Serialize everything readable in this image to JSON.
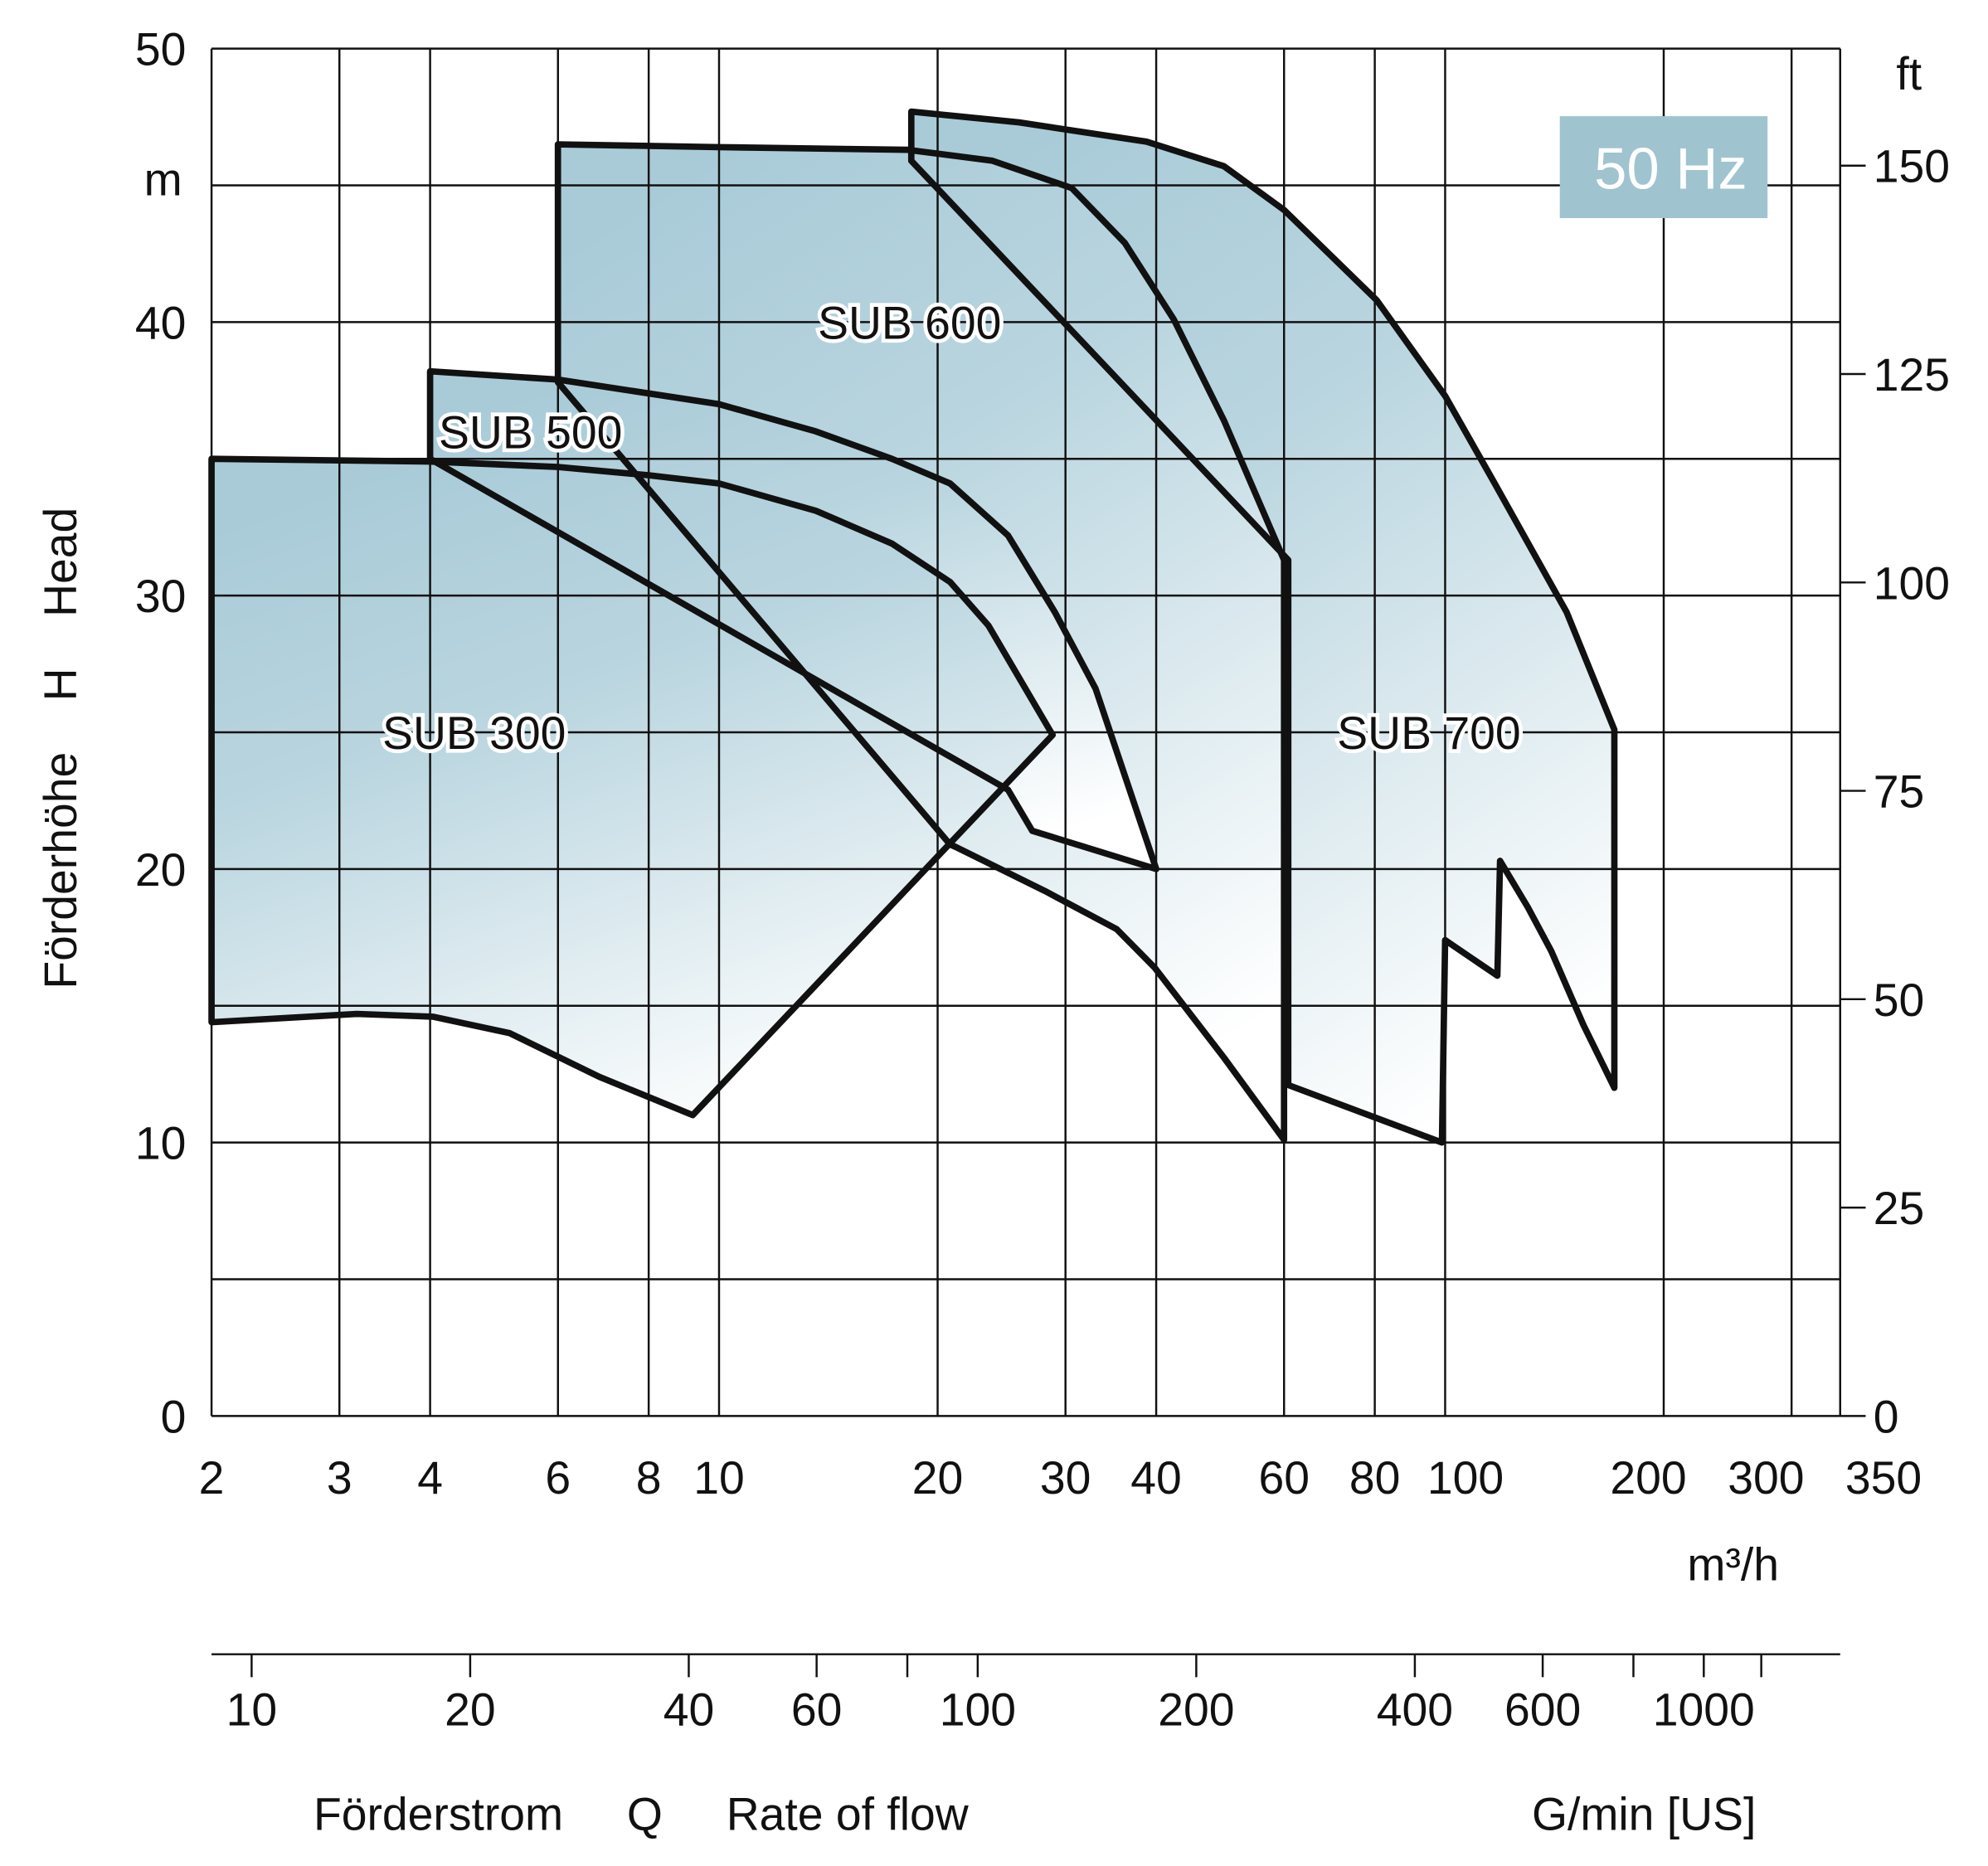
{
  "chart_data": {
    "type": "area",
    "badge": "50 Hz",
    "colors": {
      "fill_dark": "#a9cbd8",
      "fill_light": "#ffffff",
      "badge_bg": "#9fc4cf",
      "badge_text": "#ffffff"
    },
    "x_scale": "log",
    "xlim": [
      2,
      350
    ],
    "ylim": [
      0,
      50
    ],
    "grid": true,
    "x_gridlines": [
      2,
      3,
      4,
      6,
      8,
      10,
      20,
      30,
      40,
      60,
      80,
      100,
      200,
      300,
      350
    ],
    "y_gridlines": [
      0,
      5,
      10,
      15,
      20,
      25,
      30,
      35,
      40,
      45,
      50
    ],
    "xticks": [
      {
        "v": 2,
        "label": "2"
      },
      {
        "v": 3,
        "label": "3"
      },
      {
        "v": 4,
        "label": "4"
      },
      {
        "v": 6,
        "label": "6"
      },
      {
        "v": 8,
        "label": "8"
      },
      {
        "v": 10,
        "label": "10"
      },
      {
        "v": 20,
        "label": "20"
      },
      {
        "v": 30,
        "label": "30"
      },
      {
        "v": 40,
        "label": "40"
      },
      {
        "v": 60,
        "label": "60"
      },
      {
        "v": 80,
        "label": "80"
      },
      {
        "v": 100,
        "label": "100"
      },
      {
        "v": 200,
        "label": "200"
      },
      {
        "v": 300,
        "label": "300"
      },
      {
        "v": 350,
        "label": "350"
      }
    ],
    "xunit": "m³/h",
    "yticks_left": [
      {
        "v": 0,
        "label": "0"
      },
      {
        "v": 10,
        "label": "10"
      },
      {
        "v": 20,
        "label": "20"
      },
      {
        "v": 30,
        "label": "30"
      },
      {
        "v": 40,
        "label": "40"
      },
      {
        "v": 50,
        "label": "50"
      }
    ],
    "yunit_left": "m",
    "ylabel": "Förderhöhe    H    Head",
    "yticks_right_ft": [
      {
        "v": 0,
        "label": "0"
      },
      {
        "v": 25,
        "label": "25"
      },
      {
        "v": 50,
        "label": "50"
      },
      {
        "v": 75,
        "label": "75"
      },
      {
        "v": 100,
        "label": "100"
      },
      {
        "v": 125,
        "label": "125"
      },
      {
        "v": 150,
        "label": "150"
      }
    ],
    "yunit_right": "ft",
    "secondary_x_gpm": {
      "ticks": [
        {
          "v": 10,
          "label": "10"
        },
        {
          "v": 20,
          "label": "20"
        },
        {
          "v": 40,
          "label": "40"
        },
        {
          "v": 60,
          "label": "60"
        },
        {
          "v": 80,
          "label": ""
        },
        {
          "v": 100,
          "label": "100"
        },
        {
          "v": 200,
          "label": "200"
        },
        {
          "v": 400,
          "label": "400"
        },
        {
          "v": 600,
          "label": "600"
        },
        {
          "v": 800,
          "label": ""
        },
        {
          "v": 1000,
          "label": "1000"
        },
        {
          "v": 1200,
          "label": ""
        }
      ],
      "unit": "G/min [US]"
    },
    "xlabel": "Förderstrom     Q     Rate of flow",
    "series": [
      {
        "name": "SUB 700",
        "label_at": [
          95,
          25
        ],
        "points": [
          [
            18.4,
            45.9
          ],
          [
            18.4,
            47.7
          ],
          [
            25.9,
            47.3
          ],
          [
            38.8,
            46.6
          ],
          [
            49.6,
            45.7
          ],
          [
            60,
            44.1
          ],
          [
            80.5,
            40.8
          ],
          [
            100,
            37.3
          ],
          [
            117,
            34.1
          ],
          [
            147,
            29.4
          ],
          [
            171,
            25.1
          ],
          [
            171,
            12.0
          ],
          [
            155,
            14.3
          ],
          [
            140,
            17.0
          ],
          [
            130,
            18.6
          ],
          [
            119,
            20.3
          ],
          [
            118,
            16.1
          ],
          [
            100,
            17.4
          ],
          [
            99,
            10
          ],
          [
            60.8,
            12.1
          ],
          [
            60.8,
            31.3
          ]
        ]
      },
      {
        "name": "SUB 600",
        "label_at": [
          18.3,
          40
        ],
        "points": [
          [
            6,
            37.8
          ],
          [
            6,
            46.5
          ],
          [
            10,
            46.4
          ],
          [
            18.2,
            46.3
          ],
          [
            23.8,
            45.9
          ],
          [
            30.6,
            44.9
          ],
          [
            36.2,
            42.9
          ],
          [
            42.3,
            40.1
          ],
          [
            49.6,
            36.4
          ],
          [
            60,
            31.3
          ],
          [
            60,
            10.1
          ],
          [
            49.6,
            13.1
          ],
          [
            39.8,
            16.4
          ],
          [
            35.3,
            17.8
          ],
          [
            28.1,
            19.2
          ],
          [
            21.2,
            20.8
          ],
          [
            20.8,
            20.9
          ]
        ]
      },
      {
        "name": "SUB 500",
        "label_at": [
          5.5,
          36
        ],
        "points": [
          [
            4,
            35
          ],
          [
            4,
            38.2
          ],
          [
            6,
            37.9
          ],
          [
            10,
            37.0
          ],
          [
            13.6,
            36.0
          ],
          [
            17.3,
            35.0
          ],
          [
            20.8,
            34.1
          ],
          [
            25,
            32.2
          ],
          [
            29,
            29.4
          ],
          [
            33,
            26.6
          ],
          [
            40,
            20
          ],
          [
            27,
            21.4
          ],
          [
            25,
            22.9
          ]
        ]
      },
      {
        "name": "SUB 300",
        "label_at": [
          4.6,
          25
        ],
        "points": [
          [
            2,
            35
          ],
          [
            4,
            34.9
          ],
          [
            6,
            34.7
          ],
          [
            8,
            34.4
          ],
          [
            10,
            34.1
          ],
          [
            13.6,
            33.1
          ],
          [
            17.3,
            31.9
          ],
          [
            20.8,
            30.5
          ],
          [
            23.5,
            28.9
          ],
          [
            28.8,
            24.9
          ],
          [
            9.2,
            11.0
          ],
          [
            6.84,
            12.4
          ],
          [
            5.15,
            14.0
          ],
          [
            4.04,
            14.6
          ],
          [
            3.17,
            14.7
          ],
          [
            2,
            14.4
          ]
        ]
      }
    ]
  }
}
